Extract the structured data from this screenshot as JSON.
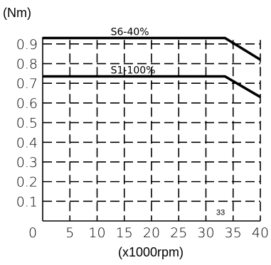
{
  "chart_data": {
    "type": "line",
    "ylabel": "(Nm)",
    "xlabel": "(x1000rpm)",
    "xlim": [
      0,
      40
    ],
    "ylim": [
      0,
      0.95
    ],
    "x_ticks": [
      {
        "value": 0,
        "label": "0"
      },
      {
        "value": 5,
        "label": "5"
      },
      {
        "value": 10,
        "label": "10"
      },
      {
        "value": 15,
        "label": "15"
      },
      {
        "value": 20,
        "label": "20"
      },
      {
        "value": 25,
        "label": "25"
      },
      {
        "value": 30,
        "label": "30"
      },
      {
        "value": 35,
        "label": "35"
      },
      {
        "value": 40,
        "label": "40"
      }
    ],
    "y_ticks": [
      {
        "value": 0.1,
        "label": "0.1"
      },
      {
        "value": 0.2,
        "label": "0.2"
      },
      {
        "value": 0.3,
        "label": "0.3"
      },
      {
        "value": 0.4,
        "label": "0.4"
      },
      {
        "value": 0.5,
        "label": "0.5"
      },
      {
        "value": 0.6,
        "label": "0.6"
      },
      {
        "value": 0.7,
        "label": "0.7"
      },
      {
        "value": 0.8,
        "label": "0.8"
      },
      {
        "value": 0.9,
        "label": "0.9"
      }
    ],
    "grid": true,
    "series": [
      {
        "name": "S6-40%",
        "x": [
          0,
          33.5,
          40
        ],
        "y": [
          0.93,
          0.93,
          0.82
        ]
      },
      {
        "name": "S1-100%",
        "x": [
          0,
          33.5,
          40
        ],
        "y": [
          0.735,
          0.735,
          0.63
        ]
      }
    ],
    "annotations": [
      {
        "text": "33",
        "x": 32.7,
        "y": 0.03
      }
    ]
  }
}
